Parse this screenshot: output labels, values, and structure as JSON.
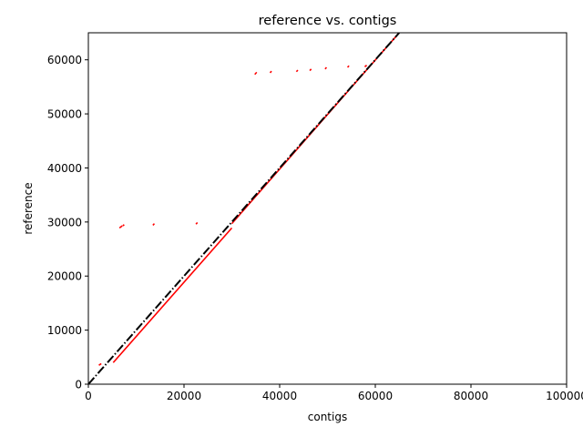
{
  "chart_data": {
    "type": "line",
    "title": "reference vs. contigs",
    "xlabel": "contigs",
    "ylabel": "reference",
    "xlim": [
      0,
      100000
    ],
    "ylim": [
      0,
      65000
    ],
    "xticks": [
      0,
      20000,
      40000,
      60000,
      80000,
      100000
    ],
    "yticks": [
      0,
      10000,
      20000,
      30000,
      40000,
      50000,
      60000
    ],
    "xtick_labels": [
      "0",
      "20000",
      "40000",
      "60000",
      "80000",
      "100000"
    ],
    "ytick_labels": [
      "0",
      "10000",
      "20000",
      "30000",
      "40000",
      "50000",
      "60000"
    ],
    "grid": false,
    "series": [
      {
        "color": "#ff0000",
        "style": "solid",
        "segments": [
          [
            [
              5200,
              4000
            ],
            [
              30000,
              28900
            ]
          ],
          [
            [
              30000,
              29700
            ],
            [
              65000,
              65000
            ]
          ],
          [
            [
              2200,
              3500
            ],
            [
              2700,
              3800
            ]
          ],
          [
            [
              6500,
              28900
            ],
            [
              7100,
              29300
            ]
          ],
          [
            [
              7200,
              29300
            ],
            [
              7500,
              29500
            ]
          ],
          [
            [
              13500,
              29400
            ],
            [
              13800,
              29700
            ]
          ],
          [
            [
              22500,
              29600
            ],
            [
              22800,
              29900
            ]
          ],
          [
            [
              34800,
              57300
            ],
            [
              35200,
              57700
            ]
          ],
          [
            [
              38000,
              57600
            ],
            [
              38300,
              57900
            ]
          ],
          [
            [
              43500,
              57800
            ],
            [
              43800,
              58100
            ]
          ],
          [
            [
              46300,
              58000
            ],
            [
              46600,
              58300
            ]
          ],
          [
            [
              49500,
              58300
            ],
            [
              49800,
              58600
            ]
          ],
          [
            [
              54200,
              58600
            ],
            [
              54500,
              58900
            ]
          ],
          [
            [
              57800,
              58700
            ],
            [
              58200,
              59000
            ]
          ]
        ]
      },
      {
        "color": "#000000",
        "style": "dashdot",
        "segments": [
          [
            [
              0,
              0
            ],
            [
              65000,
              65000
            ]
          ]
        ]
      }
    ]
  }
}
